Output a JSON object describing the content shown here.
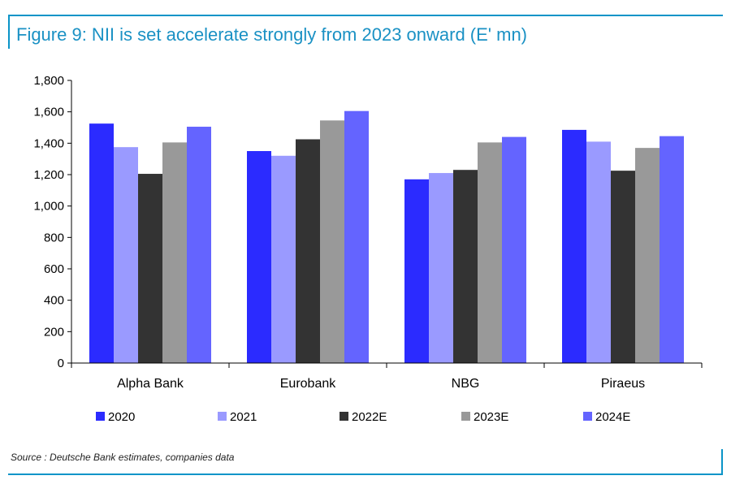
{
  "title": "Figure 9: NII is set accelerate strongly from 2023 onward (E' mn)",
  "source": "Source : Deutsche Bank estimates, companies data",
  "chart_data": {
    "type": "bar",
    "categories": [
      "Alpha Bank",
      "Eurobank",
      "NBG",
      "Piraeus"
    ],
    "ylim": [
      0,
      1800
    ],
    "yticks": [
      0,
      200,
      400,
      600,
      800,
      1000,
      1200,
      1400,
      1600,
      1800
    ],
    "ytick_labels": [
      "0",
      "200",
      "400",
      "600",
      "800",
      "1,000",
      "1,200",
      "1,400",
      "1,600",
      "1,800"
    ],
    "legend_position": "bottom",
    "grid": false,
    "series": [
      {
        "name": "2020",
        "color": "#2b2bff",
        "values": [
          1525,
          1350,
          1170,
          1485
        ]
      },
      {
        "name": "2021",
        "color": "#9a9aff",
        "values": [
          1375,
          1320,
          1210,
          1410
        ]
      },
      {
        "name": "2022E",
        "color": "#333333",
        "values": [
          1205,
          1425,
          1230,
          1225
        ]
      },
      {
        "name": "2023E",
        "color": "#999999",
        "values": [
          1405,
          1545,
          1405,
          1370
        ]
      },
      {
        "name": "2024E",
        "color": "#6464ff",
        "values": [
          1505,
          1605,
          1440,
          1445
        ]
      }
    ]
  }
}
